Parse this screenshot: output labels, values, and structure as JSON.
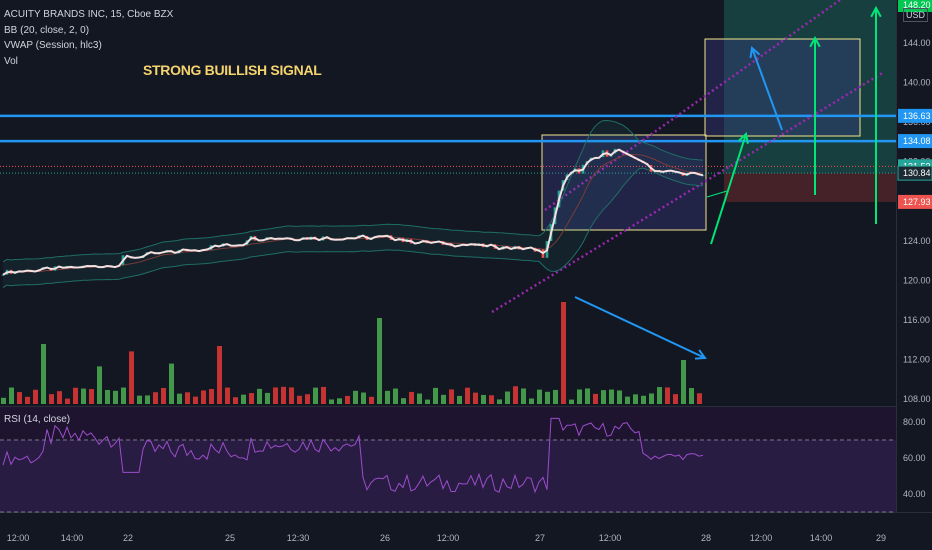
{
  "legend": {
    "symbol": "ACUITY BRANDS INC, 15, Cboe BZX",
    "bb": "BB (20, close, 2, 0)",
    "vwap": "VWAP (Session, hlc3)",
    "vol": "Vol"
  },
  "annotation": "STRONG BUILLISH SIGNAL",
  "currency": "USD",
  "rsi_label": "RSI (14, close)",
  "colors": {
    "up": "#26a69a",
    "down": "#ef5350",
    "vol_up": "#4caf50",
    "vol_down": "#e53935",
    "hline": "#2196f3",
    "channel": "#9c27b0",
    "arrow_green": "#00e676",
    "arrow_blue": "#2196f3",
    "box": "#f0e68c"
  },
  "price_axis": {
    "ticks": [
      "144.00",
      "140.00",
      "136.00",
      "132.00",
      "128.00",
      "124.00",
      "120.00",
      "116.00",
      "112.00",
      "108.00"
    ],
    "tags": [
      {
        "text": "148.20",
        "kind": "green"
      },
      {
        "text": "136.63",
        "kind": "blue"
      },
      {
        "text": "134.08",
        "kind": "blue"
      },
      {
        "text": "131.53",
        "kind": "teal"
      },
      {
        "text": "130.84",
        "kind": "dark"
      },
      {
        "text": "127.93",
        "kind": "red"
      }
    ]
  },
  "rsi_axis": {
    "ticks": [
      "80.00",
      "60.00",
      "40.00"
    ]
  },
  "time_axis": {
    "ticks": [
      "12:00",
      "14:00",
      "22",
      "25",
      "12:30",
      "26",
      "12:00",
      "27",
      "12:00",
      "28",
      "12:00",
      "14:00",
      "29"
    ]
  },
  "chart_data": {
    "type": "line",
    "title": "ACUITY BRANDS INC, 15, Cboe BZX",
    "xlabel": "",
    "ylabel": "",
    "ylim": [
      106.5,
      148.5
    ],
    "x": [
      "12:00",
      "14:00",
      "22",
      "25",
      "12:30",
      "26",
      "12:00",
      "27",
      "12:00",
      "28"
    ],
    "series": [
      {
        "values": [
          119.8,
          120.9,
          121.6,
          122.8,
          124.1,
          124.3,
          123.5,
          122.9,
          131.4,
          131.5
        ]
      }
    ],
    "horizontal_levels": [
      136.63,
      134.08,
      131.53,
      130.84,
      127.93
    ],
    "target": 148.2,
    "rsi": {
      "ylim": [
        20,
        85
      ],
      "levels": [
        70,
        30
      ]
    },
    "grid": false
  }
}
